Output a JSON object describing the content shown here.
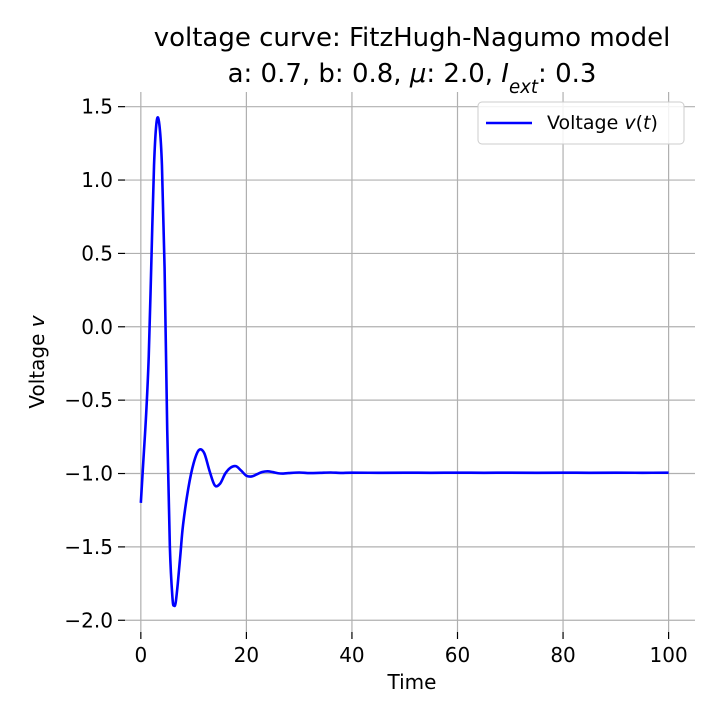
{
  "chart_data": {
    "type": "line",
    "title": "voltage curve: FitzHugh-Nagumo model",
    "subtitle_parts": [
      {
        "text": "a: 0.7, b: 0.8, ",
        "style": "normal"
      },
      {
        "text": "μ",
        "style": "italic"
      },
      {
        "text": ": 2.0, ",
        "style": "normal"
      },
      {
        "text": "I",
        "style": "italic"
      },
      {
        "text": "ext",
        "style": "italic-sub"
      },
      {
        "text": ": 0.3",
        "style": "normal"
      }
    ],
    "xlabel": "Time",
    "ylabel_parts": [
      {
        "text": "Voltage ",
        "style": "normal"
      },
      {
        "text": "v",
        "style": "italic"
      }
    ],
    "xlim": [
      -3,
      105
    ],
    "ylim": [
      -2.08,
      1.6
    ],
    "x_ticks": [
      0,
      20,
      40,
      60,
      80,
      100
    ],
    "x_tick_labels": [
      "0",
      "20",
      "40",
      "60",
      "80",
      "100"
    ],
    "y_ticks": [
      1.5,
      1.0,
      0.5,
      0.0,
      -0.5,
      -1.0,
      -1.5,
      -2.0
    ],
    "y_tick_labels": [
      "1.5",
      "1.0",
      "0.5",
      "0.0",
      "−0.5",
      "−1.0",
      "−1.5",
      "−2.0"
    ],
    "grid": true,
    "legend_position": "top-right",
    "series": [
      {
        "name_parts": [
          {
            "text": "Voltage ",
            "style": "normal"
          },
          {
            "text": "v",
            "style": "italic"
          },
          {
            "text": "(",
            "style": "normal"
          },
          {
            "text": "t",
            "style": "italic"
          },
          {
            "text": ")",
            "style": "normal"
          }
        ],
        "color": "#0000ff",
        "x": [
          0,
          0.5,
          1,
          1.5,
          2,
          2.5,
          3,
          3.5,
          4,
          4.5,
          5,
          5.5,
          6,
          6.3,
          6.6,
          7,
          7.5,
          8,
          9,
          10,
          11,
          12,
          13,
          14,
          15,
          16,
          17,
          18,
          19,
          20,
          21,
          22,
          23,
          24,
          25,
          26,
          27,
          28,
          30,
          32,
          34,
          36,
          38,
          40,
          45,
          50,
          55,
          60,
          65,
          70,
          75,
          80,
          85,
          90,
          95,
          100
        ],
        "y": [
          -1.2,
          -0.9,
          -0.6,
          -0.2,
          0.45,
          1.1,
          1.4,
          1.38,
          1.1,
          0.4,
          -0.7,
          -1.5,
          -1.85,
          -1.9,
          -1.88,
          -1.75,
          -1.55,
          -1.35,
          -1.1,
          -0.93,
          -0.84,
          -0.86,
          -0.98,
          -1.08,
          -1.07,
          -1.0,
          -0.96,
          -0.95,
          -0.98,
          -1.015,
          -1.02,
          -1.005,
          -0.99,
          -0.985,
          -0.99,
          -0.998,
          -1.0,
          -0.997,
          -0.993,
          -0.997,
          -0.995,
          -0.993,
          -0.996,
          -0.994,
          -0.995,
          -0.994,
          -0.995,
          -0.994,
          -0.995,
          -0.994,
          -0.995,
          -0.994,
          -0.995,
          -0.994,
          -0.995,
          -0.994
        ]
      }
    ]
  }
}
